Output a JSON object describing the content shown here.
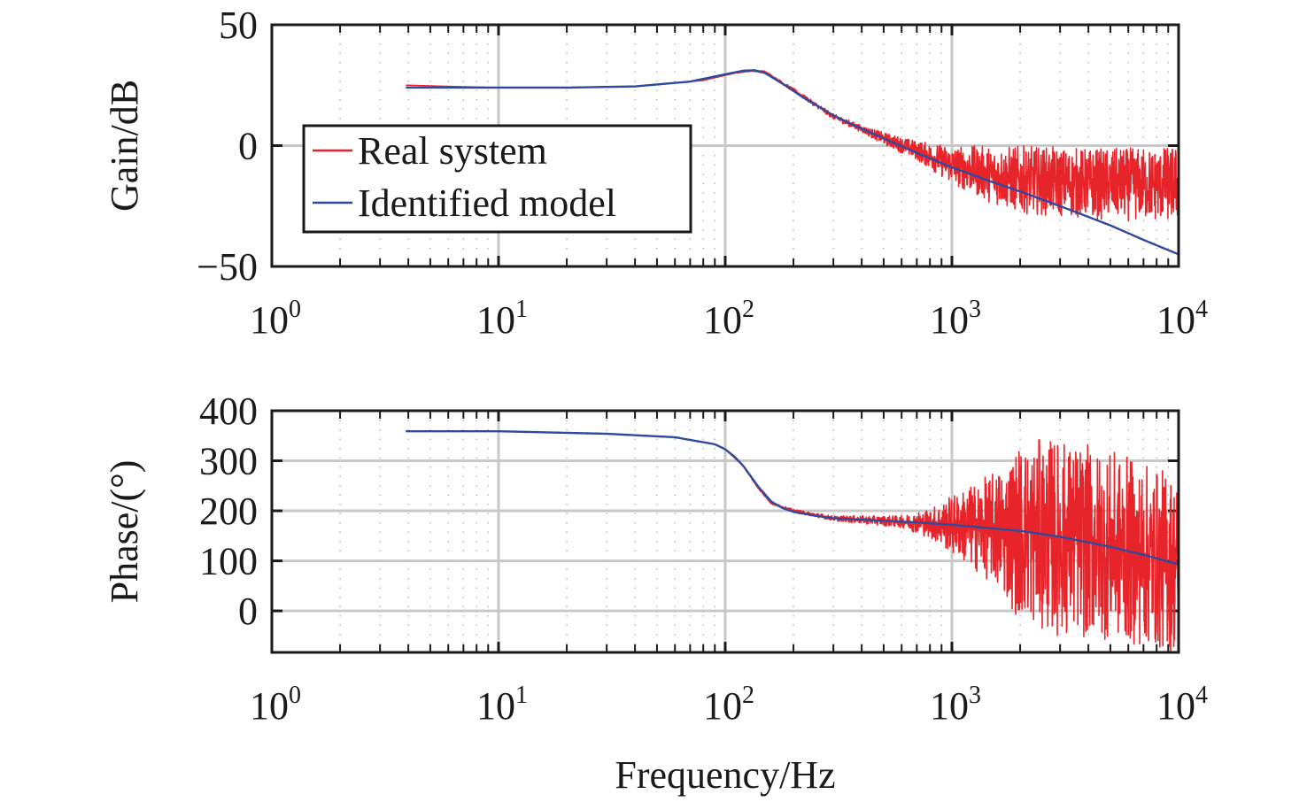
{
  "chart_data": [
    {
      "type": "line",
      "panel": "magnitude",
      "title": "",
      "xlabel": "",
      "ylabel": "Gain/dB",
      "xscale": "log",
      "xlim": [
        1,
        10000
      ],
      "ylim": [
        -50,
        50
      ],
      "yticks": [
        -50,
        0,
        50
      ],
      "ytick_labels": [
        "−50",
        "0",
        "50"
      ],
      "xticks": [
        1,
        10,
        100,
        1000,
        10000
      ],
      "xtick_labels": [
        {
          "base": "10",
          "exp": "0"
        },
        {
          "base": "10",
          "exp": "1"
        },
        {
          "base": "10",
          "exp": "2"
        },
        {
          "base": "10",
          "exp": "3"
        },
        {
          "base": "10",
          "exp": "4"
        }
      ],
      "grid": true,
      "legend": {
        "placement": "center-left",
        "entries": [
          {
            "label": "Real system",
            "color": "#e8242b"
          },
          {
            "label": "Identified model",
            "color": "#2e4a9e"
          }
        ]
      },
      "series": [
        {
          "name": "Real system",
          "color": "#e8242b",
          "style": "noisy",
          "x": [
            3.9,
            6,
            10,
            20,
            40,
            80,
            110,
            130,
            150,
            200,
            300,
            500,
            700,
            1000,
            1500,
            2000,
            3000,
            5000,
            7000,
            10000
          ],
          "y": [
            25,
            24.5,
            24,
            24,
            24.5,
            27,
            30,
            31,
            30.5,
            23,
            12,
            3,
            -2,
            -8,
            -12,
            -14,
            -15,
            -16,
            -16,
            -16
          ],
          "noise_band_db": [
            [
              400,
              1.5
            ],
            [
              700,
              4
            ],
            [
              1000,
              8
            ],
            [
              1500,
              12
            ],
            [
              2000,
              14
            ],
            [
              5000,
              15
            ],
            [
              10000,
              16
            ]
          ]
        },
        {
          "name": "Identified model",
          "color": "#2e4a9e",
          "x": [
            3.9,
            6,
            10,
            20,
            40,
            70,
            100,
            120,
            135,
            150,
            180,
            220,
            300,
            400,
            500,
            700,
            1000,
            1500,
            2000,
            3000,
            5000,
            7000,
            10000
          ],
          "y": [
            24,
            24,
            24,
            24,
            24.5,
            26.5,
            29.5,
            31,
            31.2,
            30,
            25.5,
            20,
            12.5,
            7,
            3,
            -3,
            -9,
            -15,
            -19,
            -25,
            -33,
            -39,
            -45
          ]
        }
      ]
    },
    {
      "type": "line",
      "panel": "phase",
      "title": "",
      "xlabel": "Frequency/Hz",
      "ylabel": "Phase/(°)",
      "xscale": "log",
      "xlim": [
        1,
        10000
      ],
      "ylim": [
        -83,
        400
      ],
      "yticks": [
        0,
        100,
        200,
        300,
        400
      ],
      "ytick_labels": [
        "0",
        "100",
        "200",
        "300",
        "400"
      ],
      "xticks": [
        1,
        10,
        100,
        1000,
        10000
      ],
      "xtick_labels": [
        {
          "base": "10",
          "exp": "0"
        },
        {
          "base": "10",
          "exp": "1"
        },
        {
          "base": "10",
          "exp": "2"
        },
        {
          "base": "10",
          "exp": "3"
        },
        {
          "base": "10",
          "exp": "4"
        }
      ],
      "grid": true,
      "series": [
        {
          "name": "Real system",
          "color": "#e8242b",
          "style": "noisy",
          "x": [
            3.9,
            10,
            30,
            60,
            90,
            100,
            120,
            140,
            160,
            200,
            300,
            500,
            700,
            1000,
            2000,
            5000,
            10000
          ],
          "y": [
            359,
            359,
            354,
            347,
            333,
            323,
            290,
            245,
            215,
            200,
            185,
            180,
            177,
            172,
            160,
            130,
            93
          ],
          "noise_band_deg": [
            [
              300,
              5
            ],
            [
              600,
              12
            ],
            [
              800,
              30
            ],
            [
              1000,
              60
            ],
            [
              1500,
              110
            ],
            [
              2000,
              180
            ],
            [
              3000,
              200
            ],
            [
              5000,
              190
            ],
            [
              10000,
              180
            ]
          ]
        },
        {
          "name": "Identified model",
          "color": "#2e4a9e",
          "x": [
            3.9,
            10,
            30,
            60,
            90,
            100,
            110,
            120,
            140,
            160,
            180,
            200,
            250,
            300,
            500,
            700,
            1000,
            2000,
            3000,
            5000,
            7000,
            10000
          ],
          "y": [
            359,
            359,
            354,
            347,
            333,
            323,
            308,
            290,
            248,
            218,
            205,
            198,
            190,
            185,
            180,
            177,
            172,
            160,
            148,
            128,
            112,
            93
          ]
        }
      ]
    }
  ]
}
